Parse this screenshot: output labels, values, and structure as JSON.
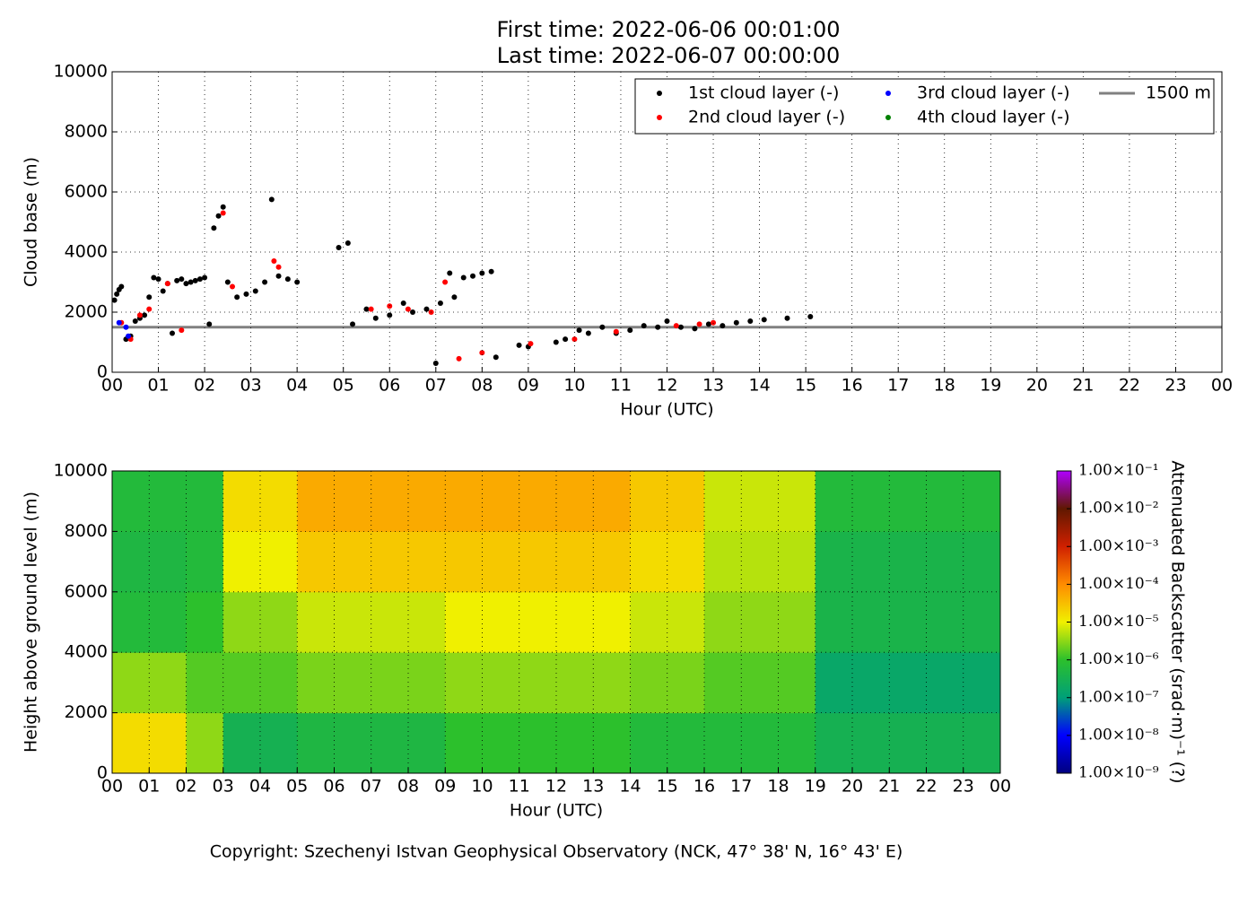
{
  "title": [
    "First time: 2022-06-06 00:01:00",
    "Last time: 2022-06-07 00:00:00"
  ],
  "footer": "Copyright: Szechenyi Istvan Geophysical Observatory (NCK, 47° 38' N, 16° 43' E)",
  "chart_data": [
    {
      "type": "scatter",
      "xlabel": "Hour (UTC)",
      "ylabel": "Cloud base (m)",
      "xlim": [
        0,
        24
      ],
      "ylim": [
        0,
        10000
      ],
      "grid": true,
      "legend": "upper right",
      "xticks": [
        {
          "value": 0,
          "label": "00"
        },
        {
          "value": 1,
          "label": "01"
        },
        {
          "value": 2,
          "label": "02"
        },
        {
          "value": 3,
          "label": "03"
        },
        {
          "value": 4,
          "label": "04"
        },
        {
          "value": 5,
          "label": "05"
        },
        {
          "value": 6,
          "label": "06"
        },
        {
          "value": 7,
          "label": "07"
        },
        {
          "value": 8,
          "label": "08"
        },
        {
          "value": 9,
          "label": "09"
        },
        {
          "value": 10,
          "label": "10"
        },
        {
          "value": 11,
          "label": "11"
        },
        {
          "value": 12,
          "label": "12"
        },
        {
          "value": 13,
          "label": "13"
        },
        {
          "value": 14,
          "label": "14"
        },
        {
          "value": 15,
          "label": "15"
        },
        {
          "value": 16,
          "label": "16"
        },
        {
          "value": 17,
          "label": "17"
        },
        {
          "value": 18,
          "label": "18"
        },
        {
          "value": 19,
          "label": "19"
        },
        {
          "value": 20,
          "label": "20"
        },
        {
          "value": 21,
          "label": "21"
        },
        {
          "value": 22,
          "label": "22"
        },
        {
          "value": 23,
          "label": "23"
        },
        {
          "value": 24,
          "label": "00"
        }
      ],
      "yticks": [
        0,
        2000,
        4000,
        6000,
        8000,
        10000
      ],
      "series": [
        {
          "name": "1st cloud layer (-)",
          "color": "#000000",
          "x": [
            0.05,
            0.1,
            0.15,
            0.2,
            0.3,
            0.4,
            0.5,
            0.6,
            0.7,
            0.8,
            0.9,
            1.0,
            1.1,
            1.2,
            1.3,
            1.4,
            1.5,
            1.6,
            1.7,
            1.8,
            1.9,
            2.0,
            2.1,
            2.2,
            2.3,
            2.4,
            2.5,
            2.7,
            2.9,
            3.1,
            3.3,
            3.45,
            3.6,
            3.8,
            4.0,
            4.9,
            5.1,
            5.2,
            5.5,
            5.7,
            6.0,
            6.3,
            6.5,
            6.8,
            7.0,
            7.1,
            7.3,
            7.4,
            7.6,
            7.8,
            8.0,
            8.2,
            8.3,
            8.8,
            9.0,
            9.6,
            9.8,
            10.1,
            10.3,
            10.6,
            10.9,
            11.2,
            11.5,
            11.8,
            12.0,
            12.3,
            12.6,
            12.9,
            13.2,
            13.5,
            13.8,
            14.1,
            14.6,
            15.1
          ],
          "values": [
            2400,
            2600,
            2750,
            2850,
            1100,
            1200,
            1700,
            1800,
            1900,
            2500,
            3150,
            3100,
            2700,
            2950,
            1300,
            3050,
            3100,
            2950,
            3000,
            3050,
            3100,
            3150,
            1600,
            4800,
            5200,
            5500,
            3000,
            2500,
            2600,
            2700,
            3000,
            5750,
            3200,
            3100,
            3000,
            4150,
            4300,
            1600,
            2100,
            1800,
            1900,
            2300,
            2000,
            2100,
            300,
            2300,
            3300,
            2500,
            3150,
            3200,
            3300,
            3350,
            500,
            900,
            850,
            1000,
            1100,
            1400,
            1300,
            1500,
            1300,
            1400,
            1550,
            1500,
            1700,
            1500,
            1450,
            1600,
            1550,
            1650,
            1700,
            1750,
            1800,
            1850
          ]
        },
        {
          "name": "2nd cloud layer (-)",
          "color": "#ff0000",
          "x": [
            0.2,
            0.4,
            0.6,
            0.8,
            1.2,
            1.5,
            2.4,
            2.6,
            3.5,
            3.6,
            5.6,
            6.0,
            6.4,
            6.9,
            7.2,
            7.5,
            8.0,
            9.05,
            10.0,
            10.9,
            12.2,
            12.7,
            13.0
          ],
          "values": [
            1650,
            1100,
            1900,
            2100,
            2950,
            1400,
            5300,
            2850,
            3700,
            3500,
            2100,
            2200,
            2100,
            2000,
            3000,
            450,
            650,
            950,
            1100,
            1350,
            1550,
            1600,
            1650
          ]
        },
        {
          "name": "3rd cloud layer (-)",
          "color": "#0000ff",
          "x": [
            0.15,
            0.3,
            0.35
          ],
          "values": [
            1650,
            1500,
            1200
          ]
        },
        {
          "name": "4th cloud layer (-)",
          "color": "#008000",
          "x": [],
          "values": []
        }
      ],
      "reference_line": {
        "name": "1500 m",
        "value": 1500,
        "color": "#808080"
      }
    },
    {
      "type": "heatmap",
      "xlabel": "Hour (UTC)",
      "ylabel": "Height above ground level (m)",
      "colorbar_label": "Attenuated Backscatter (srad·m)⁻¹ (?)",
      "xlim": [
        0,
        24
      ],
      "ylim": [
        0,
        10000
      ],
      "grid": true,
      "colorscale": "log",
      "xticks": [
        {
          "value": 0,
          "label": "00"
        },
        {
          "value": 1,
          "label": "01"
        },
        {
          "value": 2,
          "label": "02"
        },
        {
          "value": 3,
          "label": "03"
        },
        {
          "value": 4,
          "label": "04"
        },
        {
          "value": 5,
          "label": "05"
        },
        {
          "value": 6,
          "label": "06"
        },
        {
          "value": 7,
          "label": "07"
        },
        {
          "value": 8,
          "label": "08"
        },
        {
          "value": 9,
          "label": "09"
        },
        {
          "value": 10,
          "label": "10"
        },
        {
          "value": 11,
          "label": "11"
        },
        {
          "value": 12,
          "label": "12"
        },
        {
          "value": 13,
          "label": "13"
        },
        {
          "value": 14,
          "label": "14"
        },
        {
          "value": 15,
          "label": "15"
        },
        {
          "value": 16,
          "label": "16"
        },
        {
          "value": 17,
          "label": "17"
        },
        {
          "value": 18,
          "label": "18"
        },
        {
          "value": 19,
          "label": "19"
        },
        {
          "value": 20,
          "label": "20"
        },
        {
          "value": 21,
          "label": "21"
        },
        {
          "value": 22,
          "label": "22"
        },
        {
          "value": 23,
          "label": "23"
        },
        {
          "value": 24,
          "label": "00"
        }
      ],
      "yticks": [
        0,
        2000,
        4000,
        6000,
        8000,
        10000
      ],
      "xbins": [
        0,
        1,
        2,
        3,
        4,
        5,
        6,
        7,
        8,
        9,
        10,
        11,
        12,
        13,
        14,
        15,
        16,
        17,
        18,
        19,
        20,
        21,
        22,
        23,
        24
      ],
      "ybins": [
        0,
        2000,
        4000,
        6000,
        8000,
        10000
      ],
      "z": [
        [
          1.6e-05,
          1.6e-05,
          3.2e-06,
          3.2e-07,
          3.2e-07,
          5e-07,
          5e-07,
          5e-07,
          5e-07,
          1e-06,
          1e-06,
          1e-06,
          1e-06,
          1e-06,
          6.3e-07,
          6.3e-07,
          6.3e-07,
          6.3e-07,
          6.3e-07,
          3.2e-07,
          3.2e-07,
          3.2e-07,
          3.2e-07,
          3.2e-07
        ],
        [
          3.2e-06,
          3.2e-06,
          1.6e-06,
          1.6e-06,
          1.6e-06,
          2.5e-06,
          2.5e-06,
          2.5e-06,
          2.5e-06,
          3.2e-06,
          3.2e-06,
          3.2e-06,
          3.2e-06,
          3.2e-06,
          2.5e-06,
          2.5e-06,
          1.6e-06,
          1.6e-06,
          1.6e-06,
          1.6e-07,
          1.6e-07,
          1.6e-07,
          1.6e-07,
          1.6e-07
        ],
        [
          6.3e-07,
          6.3e-07,
          1e-06,
          3.2e-06,
          3.2e-06,
          6.3e-06,
          6.3e-06,
          6.3e-06,
          6.3e-06,
          1e-05,
          1e-05,
          1e-05,
          1e-05,
          1e-05,
          6.3e-06,
          6.3e-06,
          3.2e-06,
          3.2e-06,
          3.2e-06,
          4e-07,
          4e-07,
          4e-07,
          4e-07,
          4e-07
        ],
        [
          5e-07,
          5e-07,
          6.3e-07,
          1e-05,
          1e-05,
          2.5e-05,
          2.5e-05,
          2.5e-05,
          2.5e-05,
          2.5e-05,
          2.5e-05,
          2.5e-05,
          2.5e-05,
          2.5e-05,
          1.6e-05,
          1.6e-05,
          5e-06,
          5e-06,
          5e-06,
          4e-07,
          4e-07,
          4e-07,
          4e-07,
          4e-07
        ],
        [
          6.3e-07,
          6.3e-07,
          6.3e-07,
          1.6e-05,
          1.6e-05,
          5e-05,
          5e-05,
          5e-05,
          5e-05,
          5e-05,
          5e-05,
          5e-05,
          5e-05,
          5e-05,
          2.5e-05,
          2.5e-05,
          6.3e-06,
          6.3e-06,
          6.3e-06,
          6.3e-07,
          6.3e-07,
          6.3e-07,
          6.3e-07,
          6.3e-07
        ]
      ],
      "clim": [
        1e-09,
        0.1
      ],
      "cticks": [
        {
          "value": 1e-09,
          "label": "1.00×10⁻⁹"
        },
        {
          "value": 1e-08,
          "label": "1.00×10⁻⁸"
        },
        {
          "value": 1e-07,
          "label": "1.00×10⁻⁷"
        },
        {
          "value": 1e-06,
          "label": "1.00×10⁻⁶"
        },
        {
          "value": 1e-05,
          "label": "1.00×10⁻⁵"
        },
        {
          "value": 0.0001,
          "label": "1.00×10⁻⁴"
        },
        {
          "value": 0.001,
          "label": "1.00×10⁻³"
        },
        {
          "value": 0.01,
          "label": "1.00×10⁻²"
        },
        {
          "value": 0.1,
          "label": "1.00×10⁻¹"
        }
      ],
      "colormap": [
        "#00007f",
        "#0000ff",
        "#00a078",
        "#2cc02c",
        "#f0f000",
        "#ff8c00",
        "#d02000",
        "#601800",
        "#b000ff"
      ]
    }
  ]
}
